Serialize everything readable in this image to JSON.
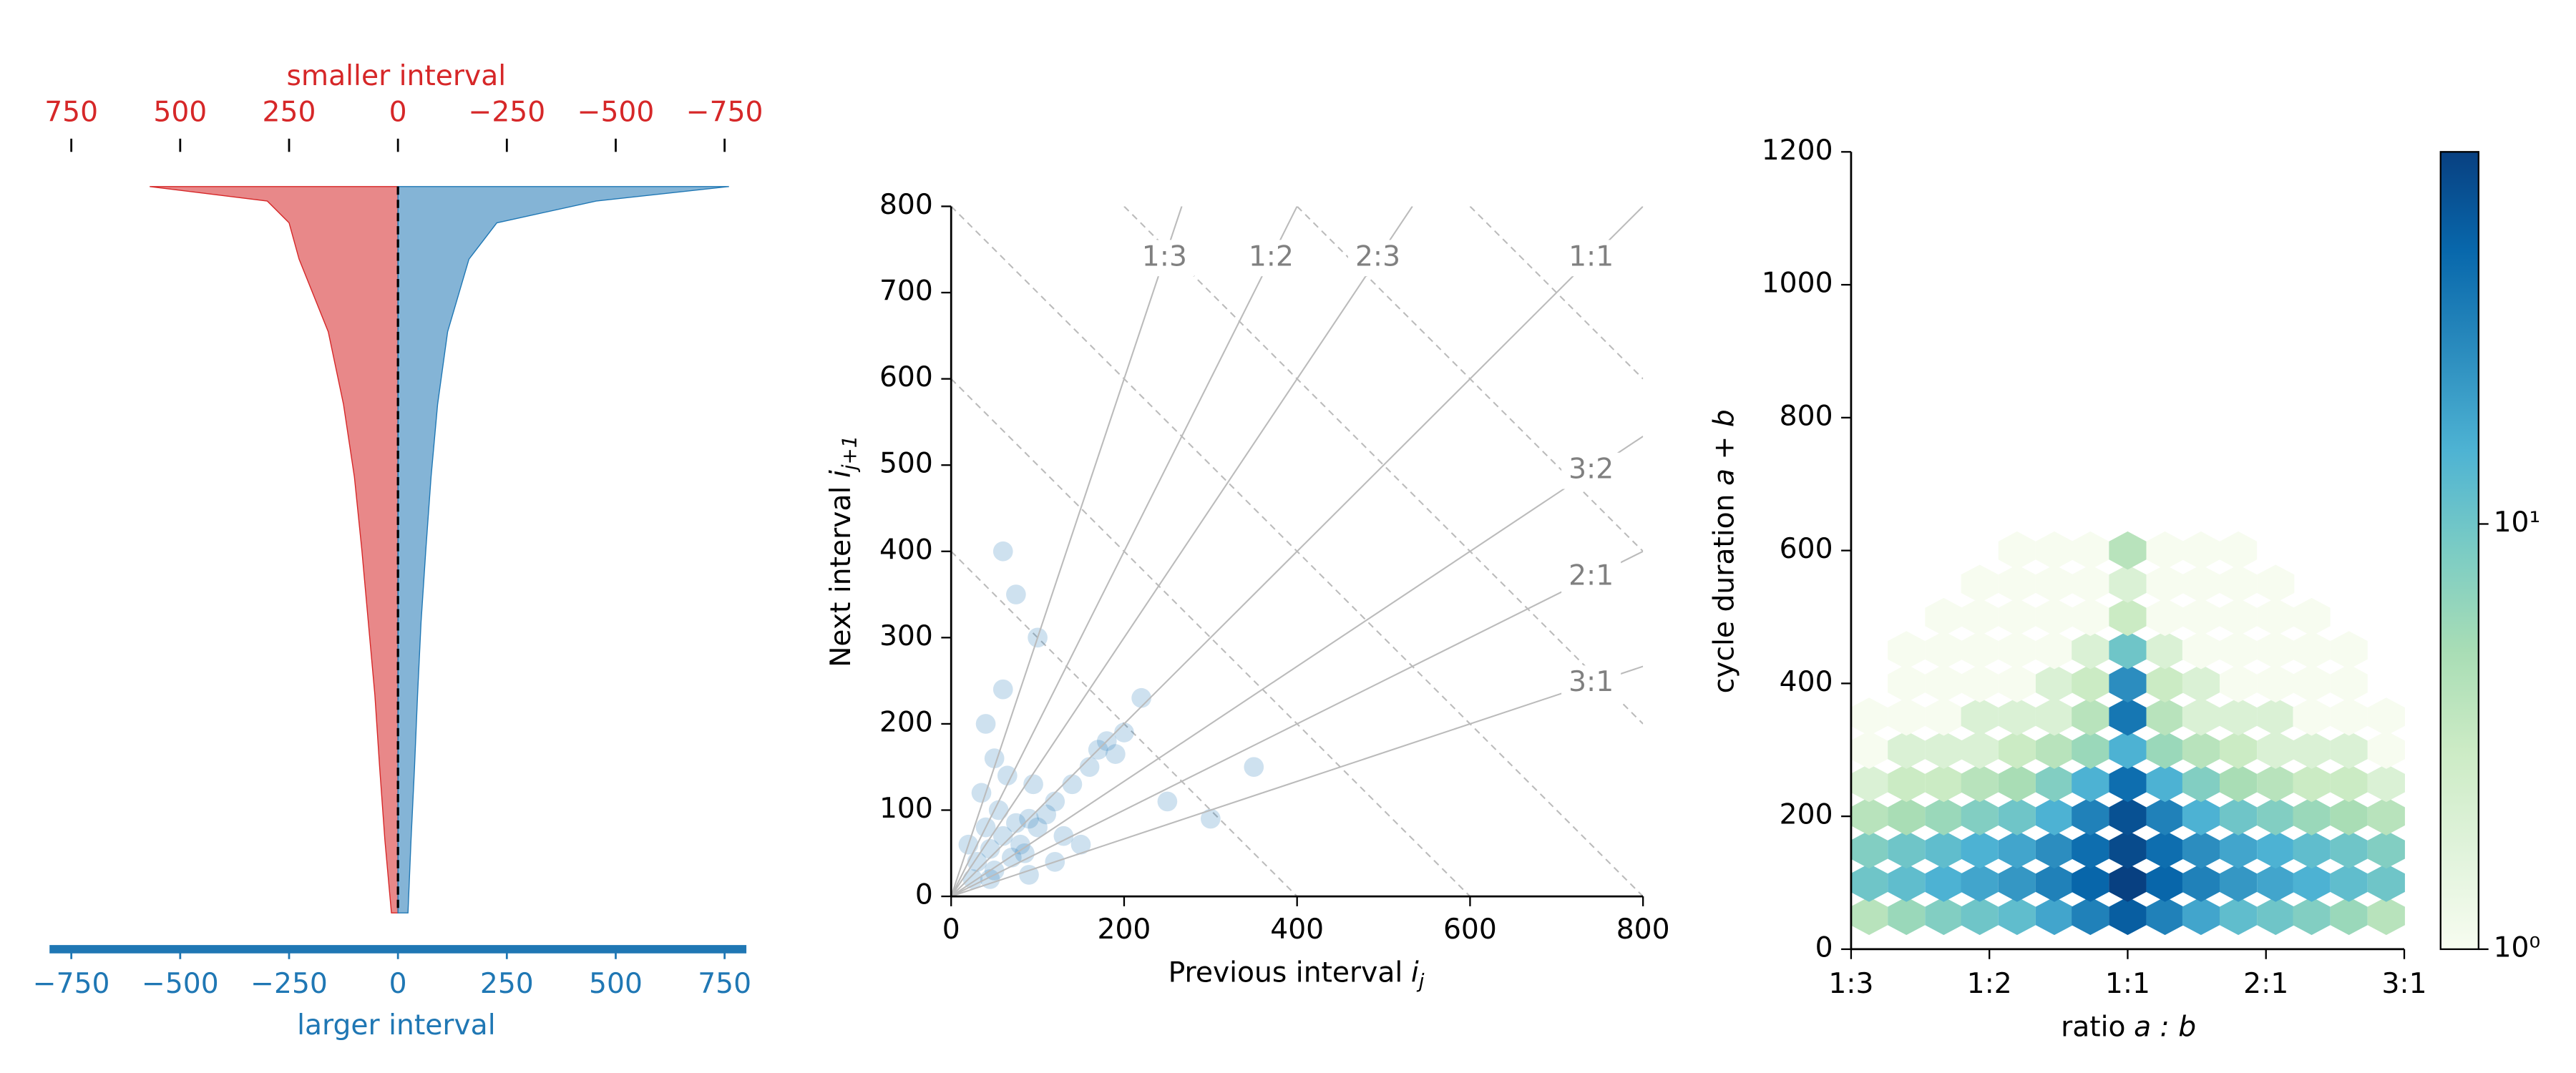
{
  "chart_data": [
    {
      "type": "rank_area",
      "top_axis_label": "smaller interval",
      "xlabel": "larger interval",
      "y": [
        0,
        0.02,
        0.05,
        0.1,
        0.2,
        0.3,
        0.4,
        0.5,
        0.6,
        0.7,
        0.8,
        0.9,
        1
      ],
      "ylim": [
        1,
        0
      ],
      "series": [
        {
          "color": "#d62728",
          "axis": "x2",
          "values": [
            570,
            300,
            250,
            227,
            160,
            125,
            100,
            83,
            68,
            53,
            42,
            30,
            15
          ]
        },
        {
          "color": "#1f77b4",
          "values": [
            760,
            455,
            227,
            163,
            114,
            91,
            76,
            64,
            53,
            45,
            38,
            30,
            23
          ]
        }
      ],
      "xlim": [
        -800,
        800
      ],
      "xticks": [
        {
          "value": -750,
          "label": "−750"
        },
        {
          "value": -500,
          "label": "−500"
        },
        {
          "value": -250,
          "label": "−250"
        },
        0,
        250,
        500,
        750
      ],
      "x2lim": [
        800,
        -800
      ],
      "x2ticks": [
        750,
        500,
        250,
        0,
        {
          "value": -250,
          "label": "−250"
        },
        {
          "value": -500,
          "label": "−500"
        },
        {
          "value": -750,
          "label": "−750"
        }
      ]
    },
    {
      "type": "scatter",
      "xlabel": {
        "text": "Previous interval",
        "var": "i",
        "sub": "j"
      },
      "ylabel": {
        "text": "Next interval",
        "var": "i",
        "sub": "j+1"
      },
      "color": "#1f77b4",
      "x": [
        30,
        45,
        60,
        75,
        90,
        50,
        70,
        40,
        55,
        80,
        100,
        120,
        35,
        65,
        85,
        110,
        25,
        95,
        130,
        150,
        170,
        180,
        190,
        160,
        200,
        60,
        40,
        120,
        250,
        300,
        90,
        50,
        20,
        140,
        220,
        350,
        100,
        75,
        60,
        45
      ],
      "y": [
        40,
        55,
        70,
        85,
        90,
        30,
        45,
        80,
        100,
        60,
        80,
        110,
        120,
        140,
        50,
        95,
        20,
        130,
        70,
        60,
        170,
        180,
        165,
        150,
        190,
        240,
        200,
        40,
        110,
        90,
        25,
        160,
        60,
        130,
        230,
        150,
        300,
        350,
        400,
        20
      ],
      "ratio_lines": {
        "labels": [
          "1:3",
          "1:2",
          "2:3",
          "1:1",
          "3:2",
          "2:1",
          "3:1"
        ],
        "slopes": [
          3,
          2,
          1.5,
          1,
          0.6667,
          0.5,
          0.3333
        ]
      },
      "sum_lines": [
        400,
        600,
        800,
        1000,
        1200,
        1400,
        1600
      ],
      "xlim": [
        0,
        800
      ],
      "xticks": [
        0,
        200,
        400,
        600,
        800
      ],
      "ylim": [
        0,
        800
      ],
      "yticks": [
        0,
        100,
        200,
        300,
        400,
        500,
        600,
        700,
        800
      ]
    },
    {
      "type": "hexbin",
      "xlabel": {
        "text": "ratio",
        "math": "a : b"
      },
      "ylabel": {
        "text": "cycle duration",
        "math": "a + b"
      },
      "x_centers": [
        0.13,
        0.4,
        0.67,
        0.93,
        1.2,
        1.47,
        1.73,
        2,
        2.27,
        2.53,
        2.8,
        3.07,
        3.33,
        3.6,
        3.87
      ],
      "y_centers": [
        50,
        100,
        150,
        200,
        250,
        300,
        350,
        400,
        450,
        500,
        550,
        600
      ],
      "counts": [
        [
          4,
          6,
          8,
          10,
          12,
          18,
          30,
          50,
          30,
          18,
          12,
          10,
          8,
          6,
          4
        ],
        [
          10,
          12,
          15,
          18,
          22,
          30,
          45,
          75,
          45,
          30,
          22,
          18,
          15,
          12,
          10
        ],
        [
          8,
          10,
          12,
          15,
          18,
          25,
          40,
          65,
          40,
          25,
          18,
          15,
          12,
          10,
          8
        ],
        [
          4,
          5,
          6,
          8,
          10,
          15,
          30,
          60,
          30,
          15,
          10,
          8,
          6,
          5,
          4
        ],
        [
          2,
          3,
          3,
          4,
          5,
          8,
          15,
          40,
          15,
          8,
          5,
          4,
          3,
          3,
          2
        ],
        [
          1,
          2,
          2,
          2,
          3,
          4,
          6,
          15,
          6,
          4,
          3,
          2,
          2,
          2,
          1
        ],
        [
          1,
          1,
          1,
          2,
          2,
          2,
          4,
          35,
          4,
          2,
          2,
          2,
          1,
          1,
          1
        ],
        [
          null,
          1,
          1,
          1,
          1,
          2,
          3,
          25,
          3,
          2,
          1,
          1,
          1,
          1,
          null
        ],
        [
          null,
          1,
          1,
          1,
          1,
          1,
          2,
          10,
          2,
          1,
          1,
          1,
          1,
          1,
          null
        ],
        [
          null,
          null,
          1,
          1,
          1,
          1,
          1,
          3,
          1,
          1,
          1,
          1,
          1,
          null,
          null
        ],
        [
          null,
          null,
          null,
          1,
          1,
          1,
          1,
          2,
          1,
          1,
          1,
          1,
          null,
          null,
          null
        ],
        [
          null,
          null,
          null,
          null,
          1,
          1,
          1,
          4,
          1,
          1,
          1,
          null,
          null,
          null,
          null
        ]
      ],
      "xlim": [
        0,
        4
      ],
      "xticks": [
        {
          "value": 0,
          "label": "1:3"
        },
        {
          "value": 1,
          "label": "1:2"
        },
        {
          "value": 2,
          "label": "1:1"
        },
        {
          "value": 3,
          "label": "2:1"
        },
        {
          "value": 4,
          "label": "3:1"
        }
      ],
      "ylim": [
        0,
        1200
      ],
      "yticks": [
        0,
        200,
        400,
        600,
        800,
        1000,
        1200
      ],
      "colorbar": {
        "lim": [
          1,
          75
        ],
        "log": true,
        "colormap": "GnBu",
        "ticks": [
          {
            "value": 1,
            "label": "10⁰"
          },
          {
            "value": 10,
            "label": "10¹"
          }
        ]
      }
    }
  ]
}
